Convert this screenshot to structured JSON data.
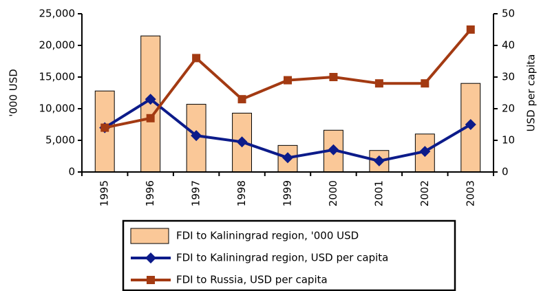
{
  "chart_data": {
    "type": "bar-line",
    "categories": [
      "1995",
      "1996",
      "1997",
      "1998",
      "1999",
      "2000",
      "2001",
      "2002",
      "2003"
    ],
    "ylabel": "'000 USD",
    "y2label": "USD per capita",
    "ylim": [
      0,
      25000
    ],
    "yticks": [
      0,
      {
        "value": 5000,
        "label": "5,000"
      },
      {
        "value": 10000,
        "label": "10,000"
      },
      {
        "value": 15000,
        "label": "15,000"
      },
      {
        "value": 20000,
        "label": "20,000"
      },
      {
        "value": 25000,
        "label": "25,000"
      }
    ],
    "y2lim": [
      0,
      50
    ],
    "y2ticks": [
      0,
      10,
      20,
      30,
      40,
      50
    ],
    "grid": false,
    "series": [
      {
        "name": "FDI to Kaliningrad region, '000 USD",
        "type": "bar",
        "axis": "y",
        "color": "#fac898",
        "values": [
          12800,
          21500,
          10700,
          9300,
          4200,
          6600,
          3400,
          6000,
          14000
        ]
      },
      {
        "name": "FDI to Kaliningrad region, USD per capita",
        "type": "line",
        "axis": "y2",
        "marker": "diamond",
        "color": "#0c1b8a",
        "values": [
          14,
          23,
          11.5,
          9.5,
          4.5,
          7,
          3.5,
          6.5,
          15
        ]
      },
      {
        "name": "FDI to Russia, USD per capita",
        "type": "line",
        "axis": "y2",
        "marker": "square",
        "color": "#a33a12",
        "values": [
          14,
          17,
          36,
          23,
          29,
          30,
          28,
          28,
          45
        ]
      }
    ]
  }
}
